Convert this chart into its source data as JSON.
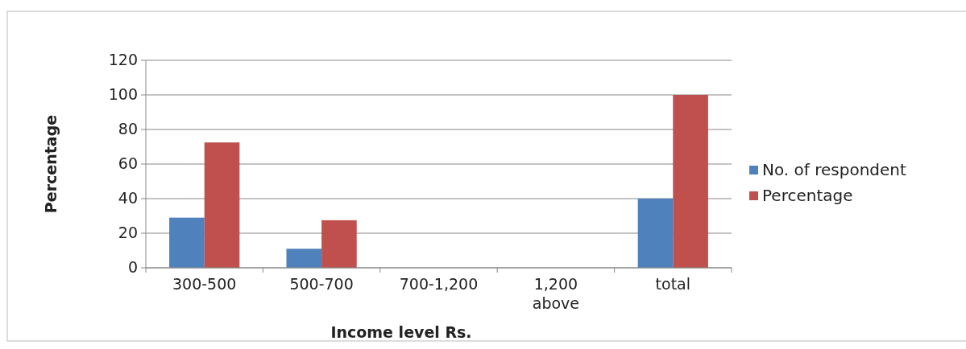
{
  "chart_data": {
    "type": "bar",
    "xlabel": "Income level Rs.",
    "ylabel": "Percentage",
    "categories": [
      "300-500",
      "500-700",
      "700-1,200",
      "1,200 above",
      "total"
    ],
    "series": [
      {
        "name": "No. of respondent",
        "color": "#4f81bd",
        "values": [
          29,
          11,
          0,
          0,
          40
        ]
      },
      {
        "name": "Percentage",
        "color": "#c0504d",
        "values": [
          72.5,
          27.5,
          0,
          0,
          100
        ]
      }
    ],
    "ylim": [
      0,
      120
    ],
    "yticks": [
      0,
      20,
      40,
      60,
      80,
      100,
      120
    ],
    "grid": "y",
    "legend": "right"
  }
}
